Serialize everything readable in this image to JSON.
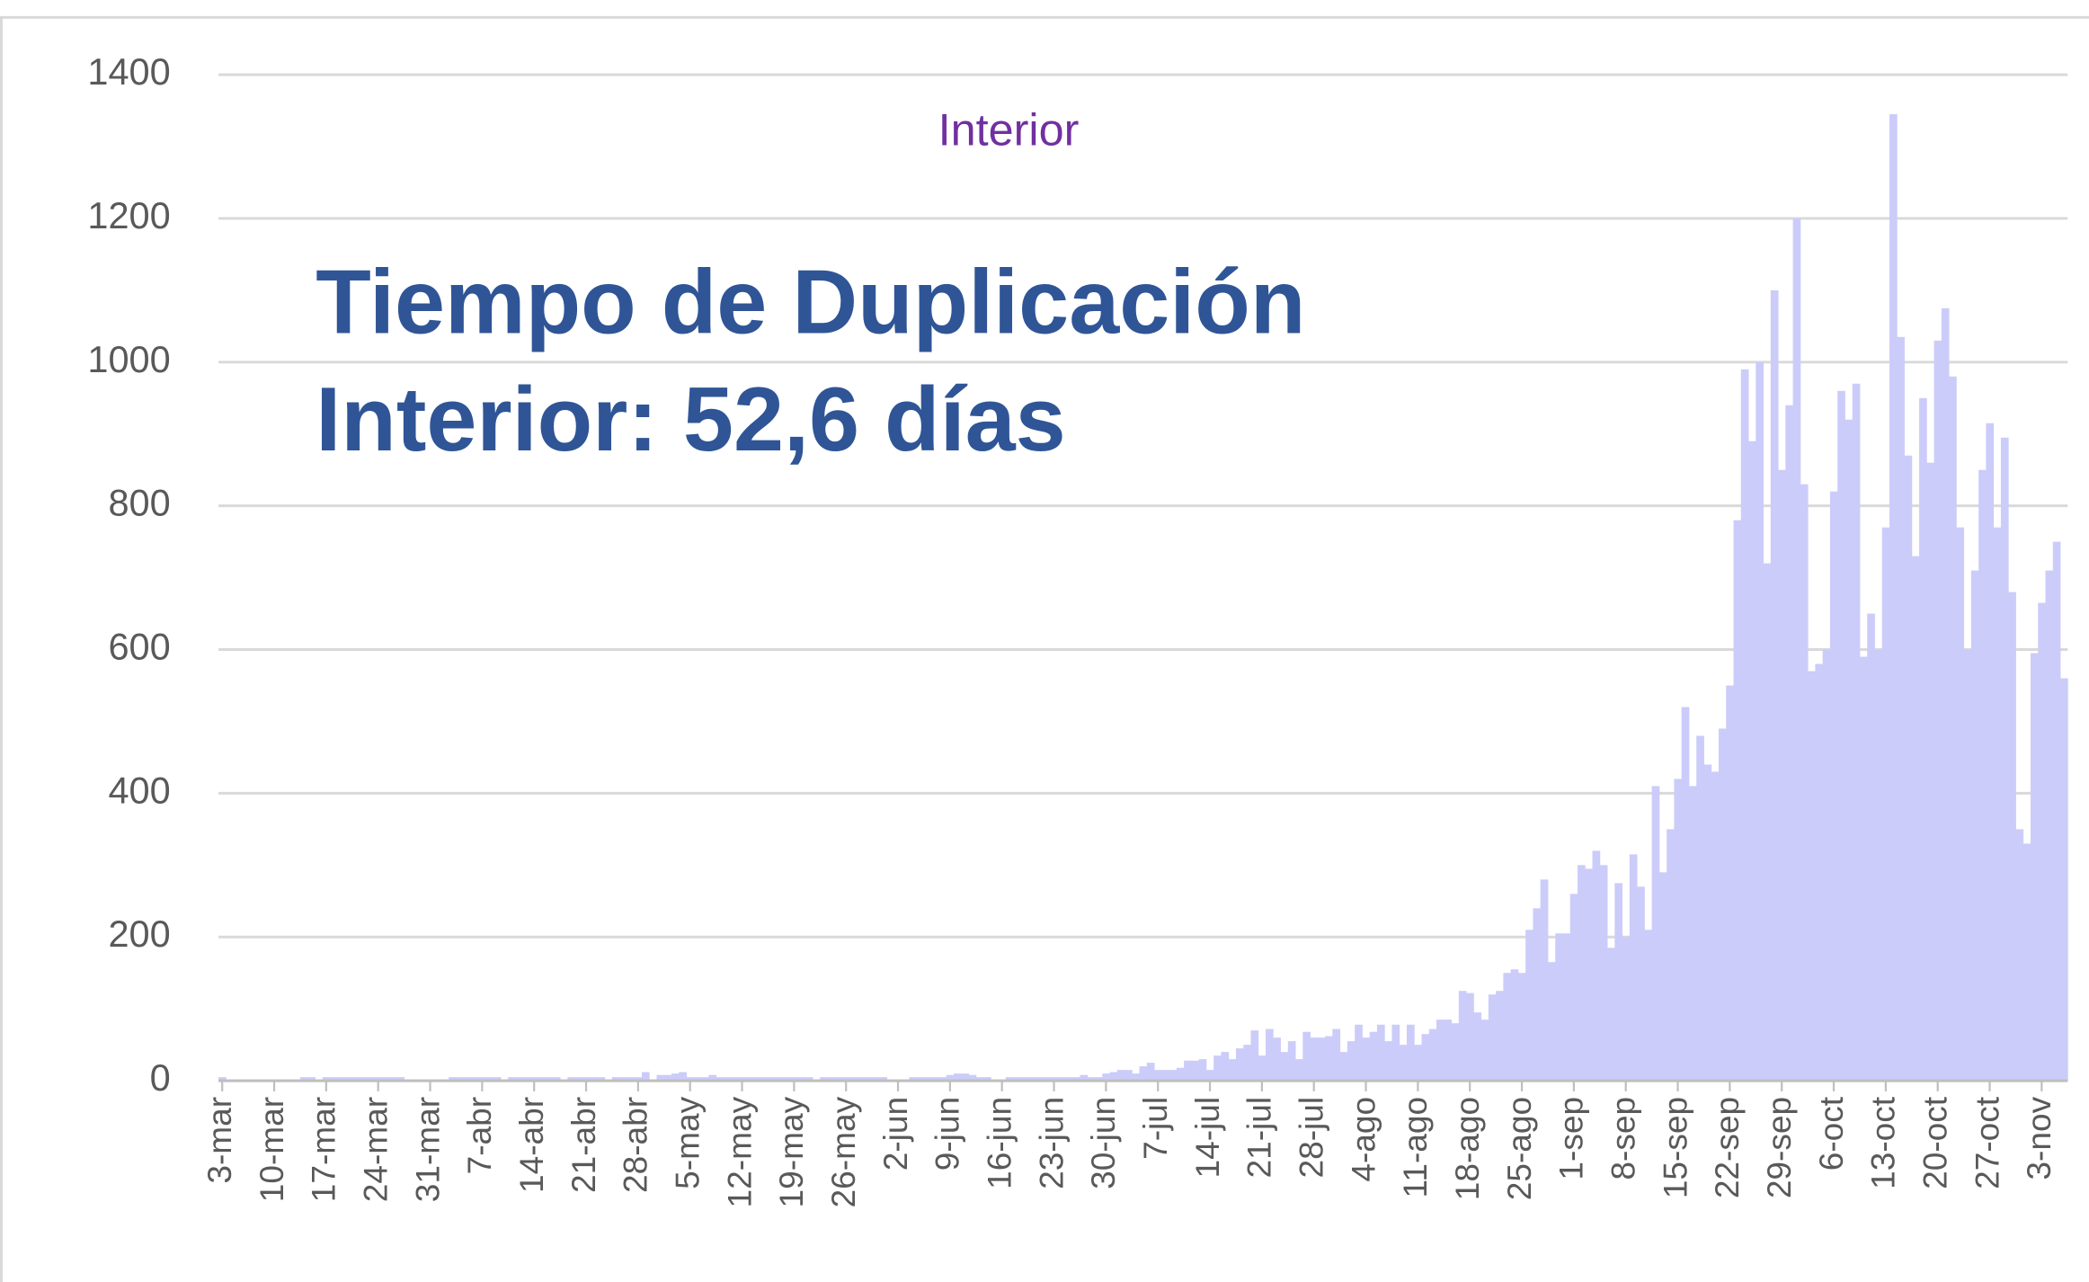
{
  "chart_data": {
    "type": "bar",
    "title": "Interior",
    "annotation": [
      "Tiempo de Duplicación",
      "Interior: 52,6 días"
    ],
    "color": "#ccccfa",
    "grid": true,
    "ylim": [
      0,
      1400
    ],
    "yticks": [
      0,
      200,
      400,
      600,
      800,
      1000,
      1200,
      1400
    ],
    "categories": [
      "3-mar",
      null,
      null,
      null,
      null,
      null,
      null,
      "10-mar",
      null,
      null,
      null,
      null,
      null,
      null,
      "17-mar",
      null,
      null,
      null,
      null,
      null,
      null,
      "24-mar",
      null,
      null,
      null,
      null,
      null,
      null,
      "31-mar",
      null,
      null,
      null,
      null,
      null,
      null,
      "7-abr",
      null,
      null,
      null,
      null,
      null,
      null,
      "14-abr",
      null,
      null,
      null,
      null,
      null,
      null,
      "21-abr",
      null,
      null,
      null,
      null,
      null,
      null,
      "28-abr",
      null,
      null,
      null,
      null,
      null,
      null,
      "5-may",
      null,
      null,
      null,
      null,
      null,
      null,
      "12-may",
      null,
      null,
      null,
      null,
      null,
      null,
      "19-may",
      null,
      null,
      null,
      null,
      null,
      null,
      "26-may",
      null,
      null,
      null,
      null,
      null,
      null,
      "2-jun",
      null,
      null,
      null,
      null,
      null,
      null,
      "9-jun",
      null,
      null,
      null,
      null,
      null,
      null,
      "16-jun",
      null,
      null,
      null,
      null,
      null,
      null,
      "23-jun",
      null,
      null,
      null,
      null,
      null,
      null,
      "30-jun",
      null,
      null,
      null,
      null,
      null,
      null,
      "7-jul",
      null,
      null,
      null,
      null,
      null,
      null,
      "14-jul",
      null,
      null,
      null,
      null,
      null,
      null,
      "21-jul",
      null,
      null,
      null,
      null,
      null,
      null,
      "28-jul",
      null,
      null,
      null,
      null,
      null,
      null,
      "4-ago",
      null,
      null,
      null,
      null,
      null,
      null,
      "11-ago",
      null,
      null,
      null,
      null,
      null,
      null,
      "18-ago",
      null,
      null,
      null,
      null,
      null,
      null,
      "25-ago",
      null,
      null,
      null,
      null,
      null,
      null,
      "1-sep",
      null,
      null,
      null,
      null,
      null,
      null,
      "8-sep",
      null,
      null,
      null,
      null,
      null,
      null,
      "15-sep",
      null,
      null,
      null,
      null,
      null,
      null,
      "22-sep",
      null,
      null,
      null,
      null,
      null,
      null,
      "29-sep",
      null,
      null,
      null,
      null,
      null,
      null,
      "6-oct",
      null,
      null,
      null,
      null,
      null,
      null,
      "13-oct",
      null,
      null,
      null,
      null,
      null,
      null,
      "20-oct",
      null,
      null,
      null,
      null,
      null,
      null,
      "27-oct",
      null,
      null,
      null,
      null,
      null,
      null,
      "3-nov",
      null,
      null,
      null
    ],
    "values": [
      5,
      0,
      0,
      0,
      0,
      0,
      0,
      0,
      0,
      0,
      0,
      5,
      5,
      0,
      5,
      5,
      5,
      5,
      5,
      5,
      5,
      5,
      5,
      5,
      5,
      0,
      0,
      0,
      0,
      0,
      0,
      5,
      5,
      5,
      5,
      5,
      5,
      5,
      0,
      5,
      5,
      5,
      5,
      5,
      5,
      5,
      0,
      5,
      5,
      5,
      5,
      5,
      0,
      5,
      5,
      5,
      5,
      12,
      0,
      8,
      8,
      10,
      12,
      5,
      5,
      5,
      8,
      5,
      5,
      5,
      5,
      5,
      5,
      5,
      5,
      5,
      5,
      5,
      5,
      5,
      0,
      5,
      5,
      5,
      5,
      5,
      5,
      5,
      5,
      5,
      0,
      0,
      0,
      5,
      5,
      5,
      5,
      5,
      8,
      10,
      10,
      8,
      5,
      5,
      0,
      0,
      5,
      5,
      5,
      5,
      5,
      5,
      5,
      5,
      5,
      5,
      8,
      5,
      5,
      10,
      12,
      15,
      15,
      10,
      20,
      25,
      15,
      15,
      15,
      18,
      28,
      28,
      30,
      15,
      35,
      40,
      30,
      45,
      50,
      70,
      35,
      72,
      60,
      40,
      55,
      30,
      68,
      60,
      60,
      62,
      72,
      40,
      55,
      78,
      60,
      68,
      78,
      55,
      78,
      50,
      78,
      50,
      65,
      72,
      85,
      85,
      80,
      125,
      122,
      95,
      85,
      120,
      125,
      150,
      155,
      150,
      210,
      240,
      280,
      165,
      205,
      205,
      260,
      300,
      295,
      320,
      300,
      185,
      275,
      200,
      315,
      270,
      210,
      410,
      290,
      350,
      420,
      520,
      410,
      480,
      440,
      430,
      490,
      550,
      780,
      990,
      890,
      1000,
      720,
      1100,
      850,
      940,
      1200,
      830,
      570,
      580,
      600,
      820,
      960,
      920,
      970,
      590,
      650,
      600,
      770,
      1345,
      1035,
      870,
      730,
      950,
      860,
      1030,
      1075,
      980,
      770,
      600,
      710,
      850,
      915,
      770,
      895,
      680,
      350,
      330,
      595,
      665,
      710,
      750,
      560
    ]
  }
}
